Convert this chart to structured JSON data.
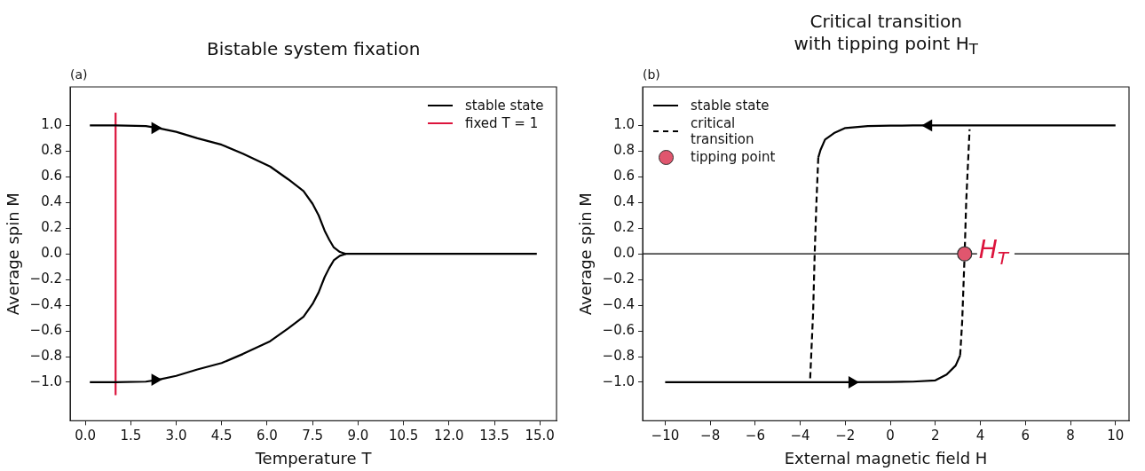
{
  "chart_data": [
    {
      "type": "line",
      "title": "Bistable system fixation",
      "xlabel": "Temperature T",
      "ylabel": "Average spin M",
      "annotations": [
        "(a)"
      ],
      "xlim": [
        -0.5,
        15.55
      ],
      "ylim": [
        -1.3,
        1.3
      ],
      "xticks": [
        {
          "value": 0,
          "label": "0.0"
        },
        {
          "value": 1.5,
          "label": "1.5"
        },
        {
          "value": 3,
          "label": "3.0"
        },
        {
          "value": 4.5,
          "label": "4.5"
        },
        {
          "value": 6,
          "label": "6.0"
        },
        {
          "value": 7.5,
          "label": "7.5"
        },
        {
          "value": 9,
          "label": "9.0"
        },
        {
          "value": 10.5,
          "label": "10.5"
        },
        {
          "value": 12,
          "label": "12.0"
        },
        {
          "value": 13.5,
          "label": "13.5"
        },
        {
          "value": 15,
          "label": "15.0"
        }
      ],
      "yticks": [
        {
          "value": -1,
          "label": "−1.0"
        },
        {
          "value": -0.8,
          "label": "−0.8"
        },
        {
          "value": -0.6,
          "label": "−0.6"
        },
        {
          "value": -0.4,
          "label": "−0.4"
        },
        {
          "value": -0.2,
          "label": "−0.2"
        },
        {
          "value": 0,
          "label": "0.0"
        },
        {
          "value": 0.2,
          "label": "0.2"
        },
        {
          "value": 0.4,
          "label": "0.4"
        },
        {
          "value": 0.6,
          "label": "0.6"
        },
        {
          "value": 0.8,
          "label": "0.8"
        },
        {
          "value": 1,
          "label": "1.0"
        }
      ],
      "legend": "top right",
      "series": [
        {
          "type": "line",
          "name": "stable state",
          "color": "#000000",
          "x": [
            0.15,
            1,
            2,
            2.4,
            3,
            3.7,
            4.5,
            5.2,
            6.1,
            6.7,
            7.2,
            7.5,
            7.7,
            7.9,
            8.05,
            8.2,
            8.4,
            8.6,
            9,
            10,
            11,
            12,
            13,
            14,
            14.9
          ],
          "values": [
            1,
            1,
            0.995,
            0.98,
            0.95,
            0.9,
            0.85,
            0.78,
            0.68,
            0.58,
            0.49,
            0.39,
            0.3,
            0.18,
            0.11,
            0.05,
            0.015,
            0,
            0,
            0,
            0,
            0,
            0,
            0,
            0
          ]
        },
        {
          "type": "line",
          "color": "#000000",
          "x": [
            0.15,
            1,
            2,
            2.4,
            3,
            3.7,
            4.5,
            5.2,
            6.1,
            6.7,
            7.2,
            7.5,
            7.7,
            7.9,
            8.05,
            8.2,
            8.4,
            8.6
          ],
          "values": [
            -1,
            -1,
            -0.995,
            -0.98,
            -0.95,
            -0.9,
            -0.85,
            -0.78,
            -0.68,
            -0.58,
            -0.49,
            -0.39,
            -0.3,
            -0.18,
            -0.11,
            -0.05,
            -0.015,
            0
          ]
        },
        {
          "type": "line",
          "name": "fixed T = 1",
          "color": "#dc143c",
          "x": [
            1,
            1
          ],
          "values": [
            -1.1,
            1.1
          ]
        },
        {
          "type": "scatter",
          "marker": "triangle",
          "color": "#000000",
          "x": [
            2.3,
            2.3
          ],
          "values": [
            0.98,
            -0.98
          ]
        }
      ]
    },
    {
      "type": "line",
      "title": "Critical transition\nwith tipping point H$_{T}$",
      "xlabel": "External magnetic field H",
      "ylabel": "Average spin M",
      "annotations": [
        "(b)",
        {
          "text": "H$_{T}$",
          "x": 3.3,
          "y": 0
        }
      ],
      "xlim": [
        -11,
        10.6
      ],
      "ylim": [
        -1.3,
        1.3
      ],
      "xticks": [
        {
          "value": -10,
          "label": "−10"
        },
        {
          "value": -8,
          "label": "−8"
        },
        {
          "value": -6,
          "label": "−6"
        },
        {
          "value": -4,
          "label": "−4"
        },
        {
          "value": -2,
          "label": "−2"
        },
        0,
        2,
        4,
        6,
        8,
        10
      ],
      "yticks": [
        {
          "value": -1,
          "label": "−1.0"
        },
        {
          "value": -0.8,
          "label": "−0.8"
        },
        {
          "value": -0.6,
          "label": "−0.6"
        },
        {
          "value": -0.4,
          "label": "−0.4"
        },
        {
          "value": -0.2,
          "label": "−0.2"
        },
        {
          "value": 0,
          "label": "0.0"
        },
        {
          "value": 0.2,
          "label": "0.2"
        },
        {
          "value": 0.4,
          "label": "0.4"
        },
        {
          "value": 0.6,
          "label": "0.6"
        },
        {
          "value": 0.8,
          "label": "0.8"
        },
        {
          "value": 1,
          "label": "1.0"
        }
      ],
      "legend": "top left",
      "ref_lines": [
        {
          "axis": "y",
          "value": 0,
          "color": "#000000"
        }
      ],
      "series": [
        {
          "type": "line",
          "name": "stable state",
          "color": "#000000",
          "x": [
            10,
            6,
            2,
            1,
            0,
            -1,
            -2,
            -2.5,
            -2.9,
            -3.1,
            -3.2
          ],
          "values": [
            1,
            1,
            1,
            1,
            0.998,
            0.995,
            0.98,
            0.94,
            0.89,
            0.81,
            0.75
          ]
        },
        {
          "type": "line",
          "color": "#000000",
          "x": [
            -10,
            -6,
            -2,
            0,
            1,
            2,
            2.5,
            2.9,
            3.1
          ],
          "values": [
            -1,
            -1,
            -1,
            -0.998,
            -0.995,
            -0.985,
            -0.94,
            -0.87,
            -0.79
          ]
        },
        {
          "type": "line",
          "name": "critical transition",
          "color": "#000000",
          "line_style": "dashed",
          "x": [
            -3.2,
            -3.28,
            -3.36,
            -3.43,
            -3.56
          ],
          "values": [
            0.75,
            0.41,
            0,
            -0.46,
            -0.97
          ]
        },
        {
          "type": "line",
          "color": "#000000",
          "line_style": "dashed",
          "x": [
            3.1,
            3.19,
            3.3,
            3.37,
            3.52
          ],
          "values": [
            -0.79,
            -0.53,
            0,
            0.41,
            0.97
          ]
        },
        {
          "type": "scatter",
          "marker": "triangle",
          "color": "#000000",
          "x": [
            1.7,
            -1.7
          ],
          "values": [
            1,
            -1
          ]
        },
        {
          "type": "scatter",
          "name": "tipping point",
          "marker": "circle",
          "color": "#e0566e",
          "x": [
            3.3
          ],
          "values": [
            0
          ]
        }
      ]
    }
  ]
}
